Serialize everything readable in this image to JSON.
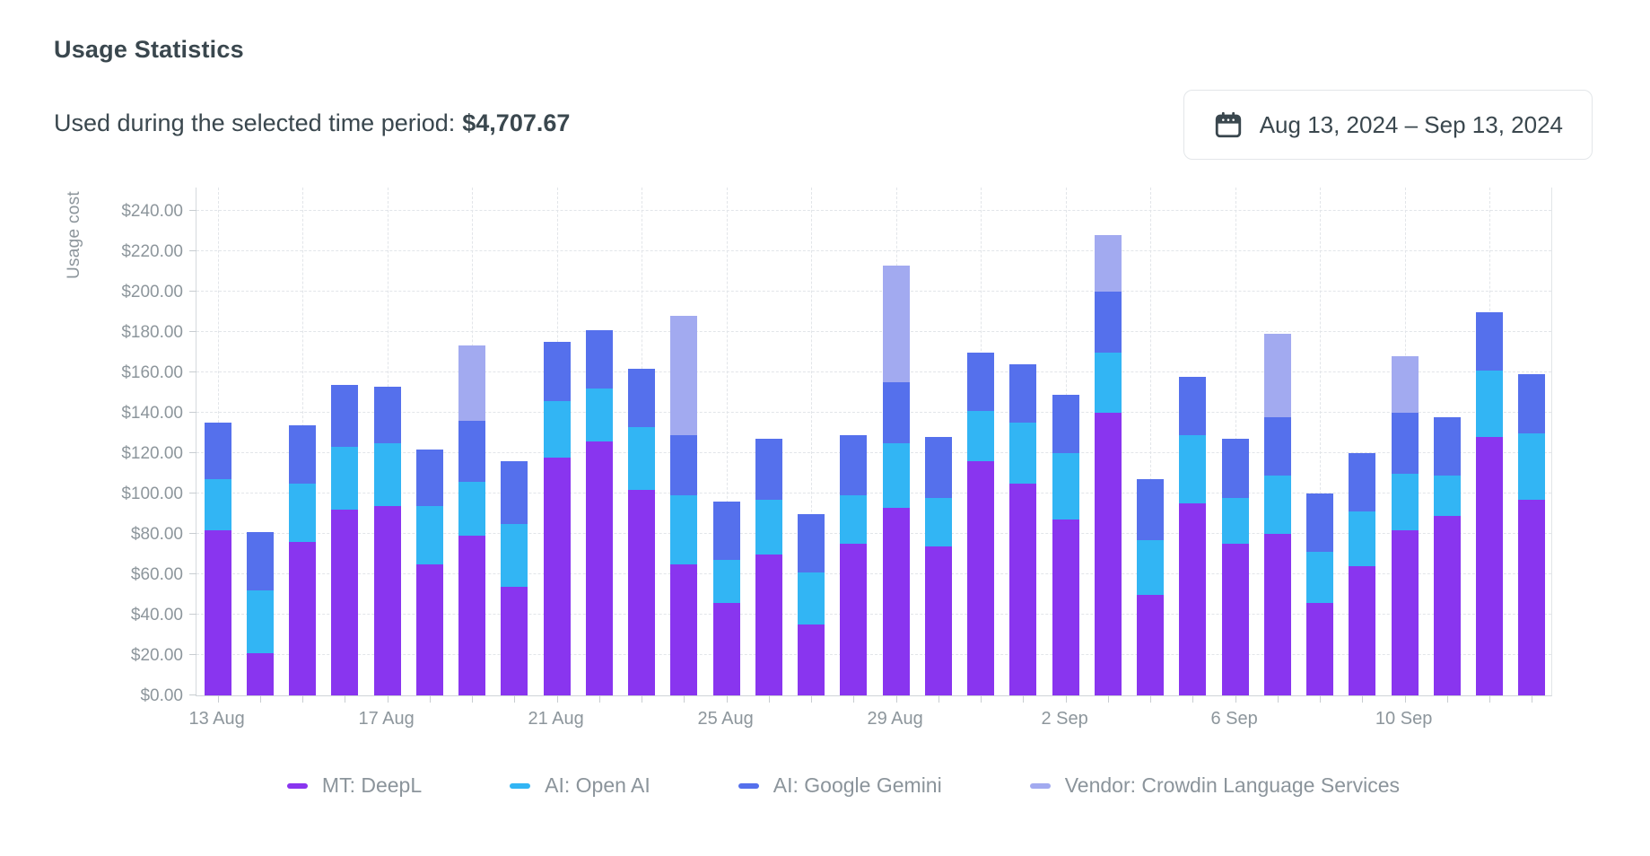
{
  "header": {
    "title": "Usage Statistics",
    "subtitle_label": "Used during the selected time period:",
    "subtitle_amount": "$4,707.67",
    "date_range": "Aug 13, 2024 – Sep 13, 2024",
    "calendar_icon": "calendar-icon"
  },
  "colors": {
    "deepl": "#8935ef",
    "openai": "#32b5f4",
    "gemini": "#5570ec",
    "vendor": "#a2aaf0",
    "text_dark": "#3a474e",
    "text_gray": "#8d969c",
    "grid": "#e2e5e9"
  },
  "chart_data": {
    "type": "bar",
    "stacked": true,
    "ylabel": "Usage cost",
    "ylim": [
      0,
      252
    ],
    "ytick_step": 20,
    "ytick_labels": [
      "$0.00",
      "$20.00",
      "$40.00",
      "$60.00",
      "$80.00",
      "$100.00",
      "$120.00",
      "$140.00",
      "$160.00",
      "$180.00",
      "$200.00",
      "$220.00",
      "$240.00"
    ],
    "grid": "dashed, horizontal every $20, vertical every 2 days",
    "legend_position": "bottom",
    "categories": [
      "13 Aug",
      "14 Aug",
      "15 Aug",
      "16 Aug",
      "17 Aug",
      "18 Aug",
      "19 Aug",
      "20 Aug",
      "21 Aug",
      "22 Aug",
      "23 Aug",
      "24 Aug",
      "25 Aug",
      "26 Aug",
      "27 Aug",
      "28 Aug",
      "29 Aug",
      "30 Aug",
      "31 Aug",
      "1 Sep",
      "2 Sep",
      "3 Sep",
      "4 Sep",
      "5 Sep",
      "6 Sep",
      "7 Sep",
      "8 Sep",
      "9 Sep",
      "10 Sep",
      "11 Sep",
      "12 Sep",
      "13 Sep"
    ],
    "xtick_labels_shown": [
      "13 Aug",
      "17 Aug",
      "21 Aug",
      "25 Aug",
      "29 Aug",
      "2 Sep",
      "6 Sep",
      "10 Sep"
    ],
    "series": [
      {
        "name": "MT: DeepL",
        "color_key": "deepl",
        "values": [
          82,
          21,
          76,
          92,
          94,
          65,
          79,
          54,
          118,
          126,
          102,
          65,
          46,
          70,
          35,
          75,
          93,
          74,
          116,
          105,
          87,
          140,
          50,
          95,
          75,
          80,
          46,
          64,
          82,
          89,
          128,
          97
        ]
      },
      {
        "name": "AI: Open AI",
        "color_key": "openai",
        "values": [
          25,
          31,
          29,
          31,
          31,
          29,
          27,
          31,
          28,
          26,
          31,
          34,
          21,
          27,
          26,
          24,
          32,
          24,
          25,
          30,
          33,
          30,
          27,
          34,
          23,
          29,
          25,
          27,
          28,
          20,
          33,
          33
        ]
      },
      {
        "name": "AI: Google Gemini",
        "color_key": "gemini",
        "values": [
          28,
          29,
          29,
          31,
          28,
          28,
          30,
          31,
          29,
          29,
          29,
          30,
          29,
          30,
          29,
          30,
          30,
          30,
          29,
          29,
          29,
          30,
          30,
          29,
          29,
          29,
          29,
          29,
          30,
          29,
          29,
          29
        ]
      },
      {
        "name": "Vendor: Crowdin Language Services",
        "color_key": "vendor",
        "values": [
          0,
          0,
          0,
          0,
          0,
          0,
          37.5,
          0,
          0,
          0,
          0,
          59,
          0,
          0,
          0,
          0,
          58,
          0,
          0,
          0,
          0,
          28,
          0,
          0,
          0,
          41,
          0,
          0,
          28,
          0,
          0,
          0
        ]
      }
    ]
  }
}
